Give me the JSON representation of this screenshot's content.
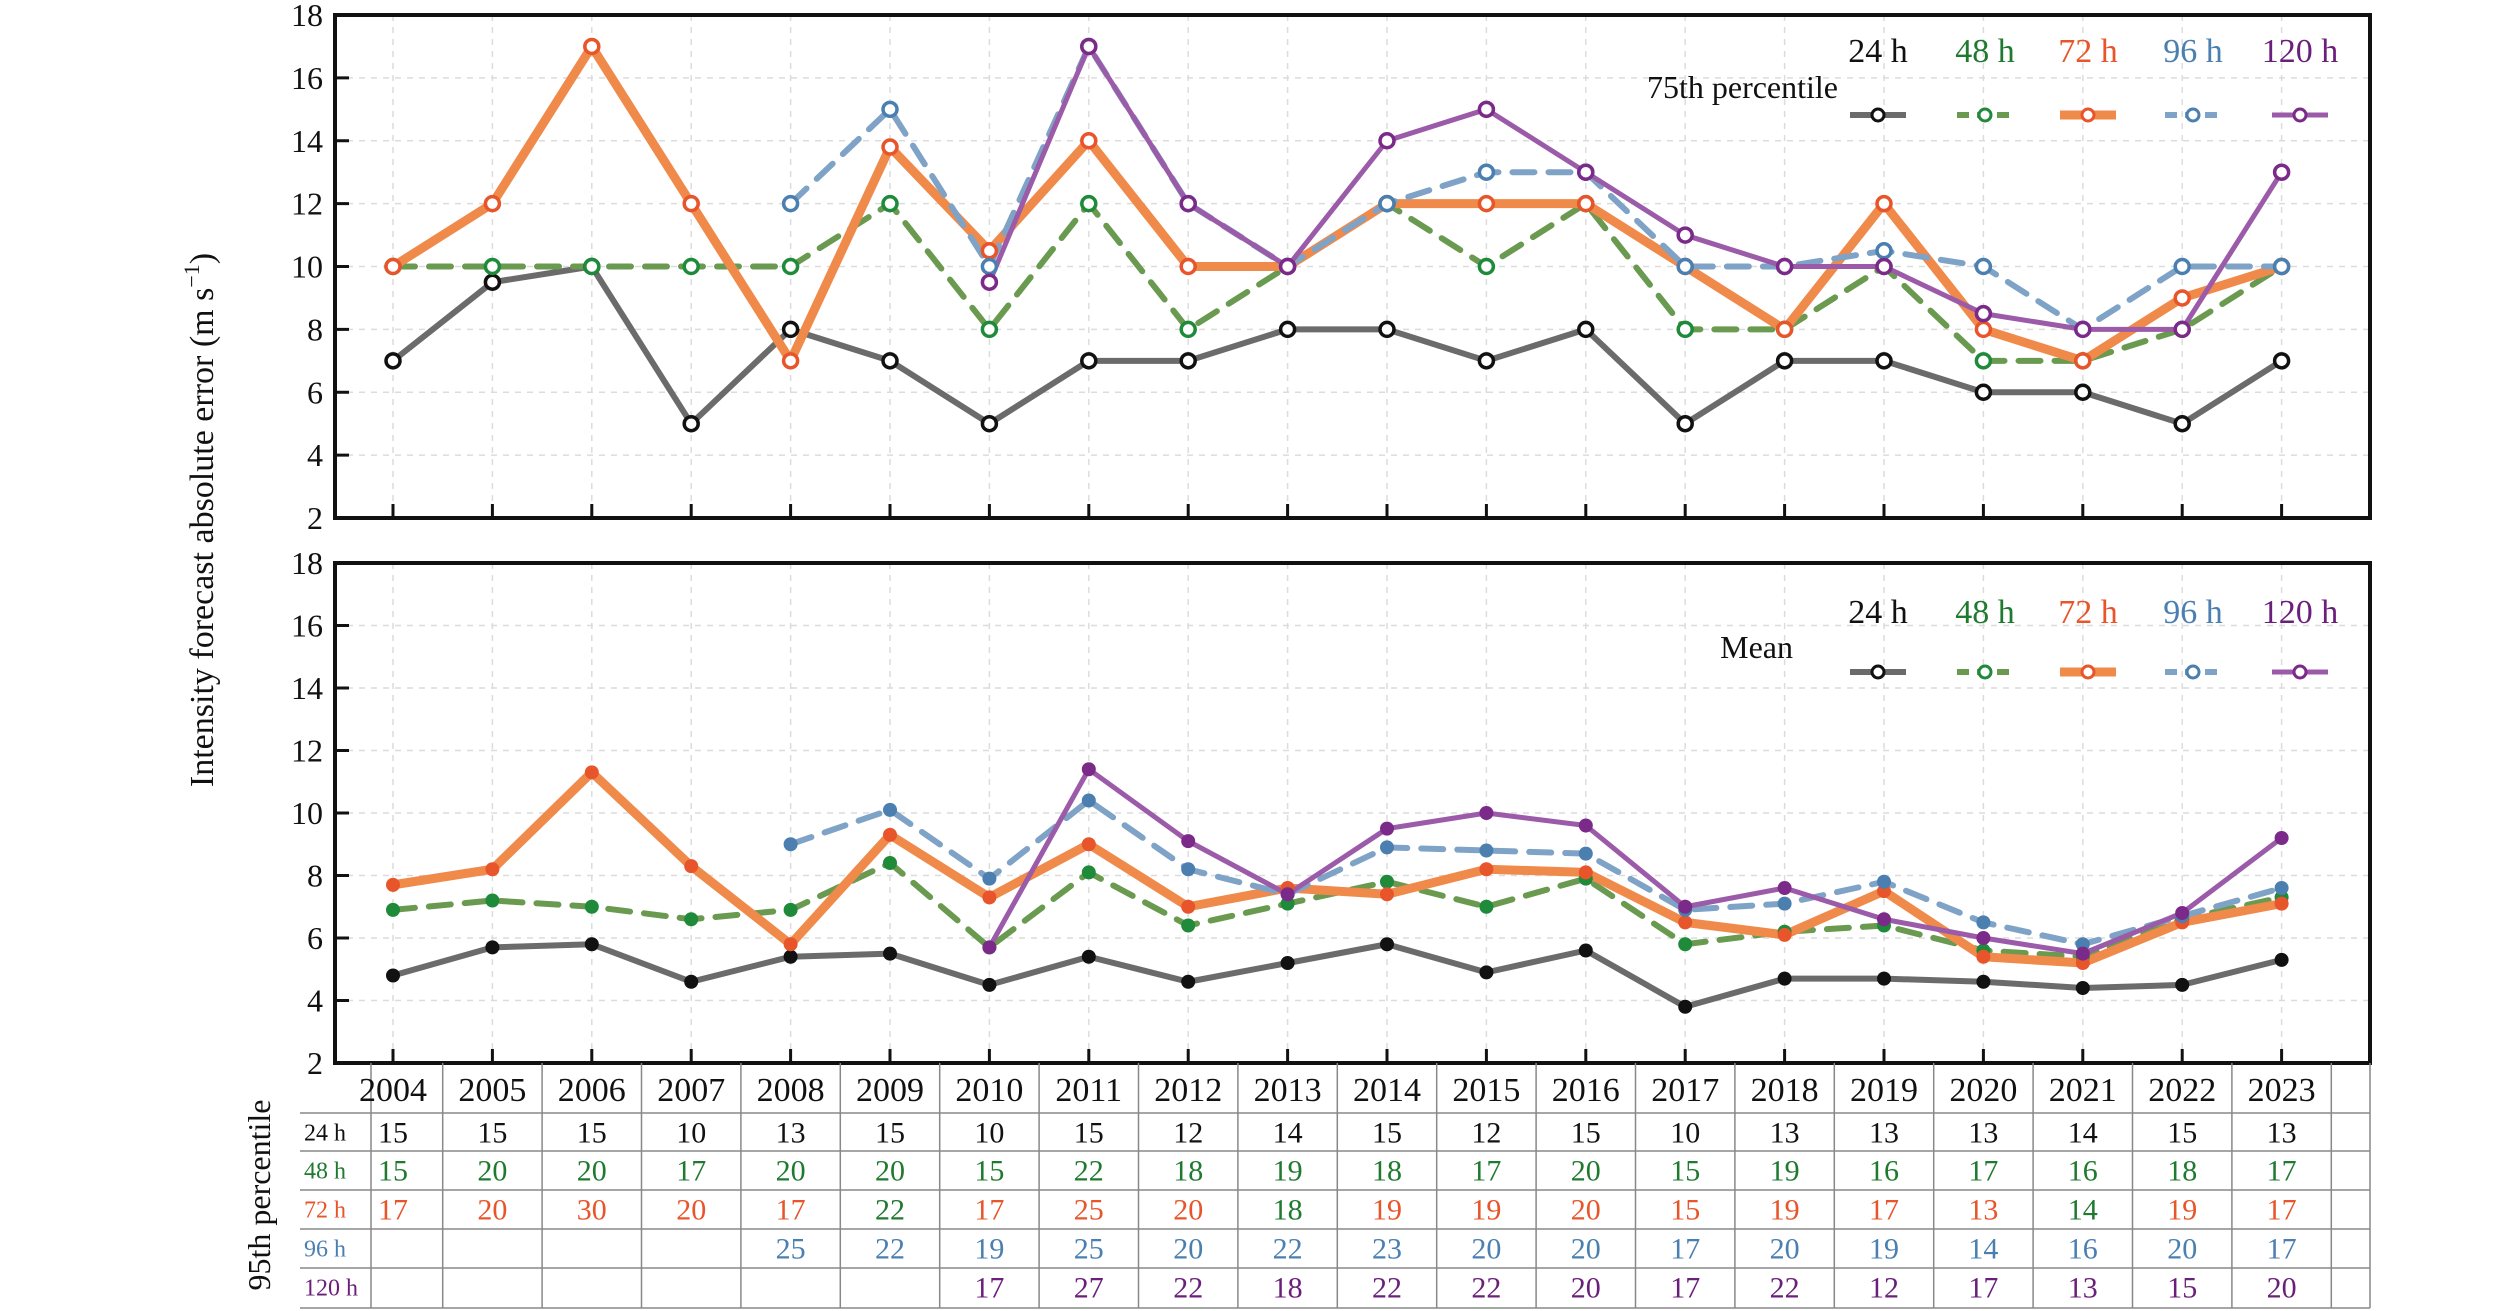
{
  "ylabel": "Intensity forecast absolute error (m s⁻¹)",
  "ylabel_main": "Intensity forecast absolute error (m s",
  "ylabel_sup": "−1",
  "ylabel_close": ")",
  "years": [
    "2004",
    "2005",
    "2006",
    "2007",
    "2008",
    "2009",
    "2010",
    "2011",
    "2012",
    "2013",
    "2014",
    "2015",
    "2016",
    "2017",
    "2018",
    "2019",
    "2020",
    "2021",
    "2022",
    "2023"
  ],
  "legend_labels": [
    "24 h",
    "48 h",
    "72 h",
    "96 h",
    "120 h"
  ],
  "colors": {
    "24 h": "#6b6b6b",
    "48 h": "#6a9a50",
    "72 h": "#f08a4b",
    "96 h": "#7fa3c6",
    "120 h": "#9b5ba8",
    "24 h marker": "#111111",
    "48 h marker": "#1f8a3a",
    "72 h marker": "#e8552a",
    "96 h marker": "#4a7fb0",
    "120 h marker": "#7b2a8a",
    "24 h text": "#111111",
    "48 h text": "#1f7a2f",
    "72 h text": "#e8552a",
    "96 h text": "#4a7fb0",
    "120 h text": "#6a1f7a"
  },
  "chart_data": [
    {
      "type": "line",
      "panel": "top",
      "legend_title": "75th percentile",
      "ylim": [
        2,
        18
      ],
      "yticks": [
        2,
        4,
        6,
        8,
        10,
        12,
        14,
        16,
        18
      ],
      "marker": "open-circle",
      "categories": [
        "2004",
        "2005",
        "2006",
        "2007",
        "2008",
        "2009",
        "2010",
        "2011",
        "2012",
        "2013",
        "2014",
        "2015",
        "2016",
        "2017",
        "2018",
        "2019",
        "2020",
        "2021",
        "2022",
        "2023"
      ],
      "series": [
        {
          "name": "24 h",
          "values": [
            7,
            9.5,
            10,
            5,
            8,
            7,
            5,
            7,
            7,
            8,
            8,
            7,
            8,
            5,
            7,
            7,
            6,
            6,
            5,
            7
          ]
        },
        {
          "name": "48 h",
          "values": [
            10,
            10,
            10,
            10,
            10,
            12,
            8,
            12,
            8,
            10,
            12,
            10,
            12,
            8,
            8,
            10,
            7,
            7,
            8,
            10
          ]
        },
        {
          "name": "72 h",
          "values": [
            10,
            12,
            17,
            12,
            7,
            13.8,
            10.5,
            14,
            10,
            10,
            12,
            12,
            12,
            10,
            8,
            12,
            8,
            7,
            9,
            10
          ]
        },
        {
          "name": "96 h",
          "values": [
            null,
            null,
            null,
            null,
            12,
            15,
            10,
            17,
            12,
            10,
            12,
            13,
            13,
            10,
            10,
            10.5,
            10,
            8,
            10,
            10
          ]
        },
        {
          "name": "120 h",
          "values": [
            null,
            null,
            null,
            null,
            null,
            null,
            9.5,
            17,
            12,
            10,
            14,
            15,
            13,
            11,
            10,
            10,
            8.5,
            8,
            8,
            13
          ]
        }
      ]
    },
    {
      "type": "line",
      "panel": "bottom",
      "legend_title": "Mean",
      "ylim": [
        2,
        18
      ],
      "yticks": [
        2,
        4,
        6,
        8,
        10,
        12,
        14,
        16,
        18
      ],
      "marker": "filled-circle",
      "categories": [
        "2004",
        "2005",
        "2006",
        "2007",
        "2008",
        "2009",
        "2010",
        "2011",
        "2012",
        "2013",
        "2014",
        "2015",
        "2016",
        "2017",
        "2018",
        "2019",
        "2020",
        "2021",
        "2022",
        "2023"
      ],
      "series": [
        {
          "name": "24 h",
          "values": [
            4.8,
            5.7,
            5.8,
            4.6,
            5.4,
            5.5,
            4.5,
            5.4,
            4.6,
            5.2,
            5.8,
            4.9,
            5.6,
            3.8,
            4.7,
            4.7,
            4.6,
            4.4,
            4.5,
            5.3
          ]
        },
        {
          "name": "48 h",
          "values": [
            6.9,
            7.2,
            7.0,
            6.6,
            6.9,
            8.4,
            5.7,
            8.1,
            6.4,
            7.1,
            7.8,
            7.0,
            7.9,
            5.8,
            6.2,
            6.4,
            5.6,
            5.4,
            6.6,
            7.3
          ]
        },
        {
          "name": "72 h",
          "values": [
            7.7,
            8.2,
            11.3,
            8.3,
            5.8,
            9.3,
            7.3,
            9.0,
            7.0,
            7.6,
            7.4,
            8.2,
            8.1,
            6.5,
            6.1,
            7.5,
            5.4,
            5.2,
            6.5,
            7.1
          ]
        },
        {
          "name": "96 h",
          "values": [
            null,
            null,
            null,
            null,
            9.0,
            10.1,
            7.9,
            10.4,
            8.2,
            7.4,
            8.9,
            8.8,
            8.7,
            6.9,
            7.1,
            7.8,
            6.5,
            5.8,
            6.7,
            7.6
          ]
        },
        {
          "name": "120 h",
          "values": [
            null,
            null,
            null,
            null,
            null,
            null,
            5.7,
            11.4,
            9.1,
            7.4,
            9.5,
            10.0,
            9.6,
            7.0,
            7.6,
            6.6,
            6.0,
            5.5,
            6.8,
            9.2
          ]
        }
      ]
    },
    {
      "type": "table",
      "panel": "table",
      "title": "95th percentile",
      "columns": [
        "2004",
        "2005",
        "2006",
        "2007",
        "2008",
        "2009",
        "2010",
        "2011",
        "2012",
        "2013",
        "2014",
        "2015",
        "2016",
        "2017",
        "2018",
        "2019",
        "2020",
        "2021",
        "2022",
        "2023"
      ],
      "rows": [
        {
          "name": "24 h",
          "values": [
            "15",
            "15",
            "15",
            "10",
            "13",
            "15",
            "10",
            "15",
            "12",
            "14",
            "15",
            "12",
            "15",
            "10",
            "13",
            "13",
            "13",
            "14",
            "15",
            "13"
          ]
        },
        {
          "name": "48 h",
          "values": [
            "15",
            "20",
            "20",
            "17",
            "20",
            "20",
            "15",
            "22",
            "18",
            "19",
            "18",
            "17",
            "20",
            "15",
            "19",
            "16",
            "17",
            "16",
            "18",
            "17"
          ]
        },
        {
          "name": "72 h",
          "values": [
            "17",
            "20",
            "30",
            "20",
            "17",
            "22",
            "17",
            "25",
            "20",
            "18",
            "19",
            "19",
            "20",
            "15",
            "19",
            "17",
            "13",
            "14",
            "19",
            "17"
          ],
          "cell_colors": [
            "72 h text",
            "72 h text",
            "72 h text",
            "72 h text",
            "72 h text",
            "48 h text",
            "72 h text",
            "72 h text",
            "72 h text",
            "48 h text",
            "72 h text",
            "72 h text",
            "72 h text",
            "72 h text",
            "72 h text",
            "72 h text",
            "72 h text",
            "48 h text",
            "72 h text",
            "72 h text"
          ]
        },
        {
          "name": "96 h",
          "values": [
            "",
            "",
            "",
            "",
            "25",
            "22",
            "19",
            "25",
            "20",
            "22",
            "23",
            "20",
            "20",
            "17",
            "20",
            "19",
            "14",
            "16",
            "20",
            "17"
          ]
        },
        {
          "name": "120 h",
          "values": [
            "",
            "",
            "",
            "",
            "",
            "",
            "17",
            "27",
            "22",
            "18",
            "22",
            "22",
            "20",
            "17",
            "22",
            "12",
            "17",
            "13",
            "15",
            "20"
          ]
        }
      ]
    }
  ]
}
